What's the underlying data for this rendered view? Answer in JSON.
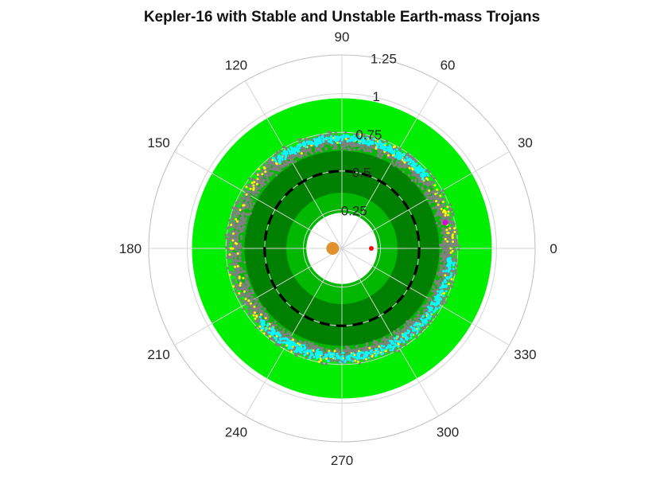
{
  "chart_data": {
    "type": "scatter",
    "projection": "polar",
    "title": "Kepler-16 with Stable and Unstable Earth-mass Trojans",
    "theta_tick_labels": [
      "0",
      "30",
      "60",
      "90",
      "120",
      "150",
      "180",
      "210",
      "240",
      "270",
      "300",
      "330"
    ],
    "theta_ticks_deg": [
      0,
      30,
      60,
      90,
      120,
      150,
      180,
      210,
      240,
      270,
      300,
      330
    ],
    "r_tick_labels": [
      "0.25",
      "0.5",
      "0.75",
      "1",
      "1.25"
    ],
    "r_ticks": [
      0.25,
      0.5,
      0.75,
      1.0,
      1.25
    ],
    "rlim": [
      0,
      1.25
    ],
    "grid": true,
    "regions": [
      {
        "kind": "annulus",
        "r_inner": 0.71,
        "r_outer": 0.97,
        "color": "#00ee00"
      },
      {
        "kind": "annulus",
        "r_inner": 0.23,
        "r_outer": 0.71,
        "color": "#00b800"
      },
      {
        "kind": "annulus",
        "r_inner": 0.36,
        "r_outer": 0.63,
        "color": "#008000"
      }
    ],
    "series": [
      {
        "kind": "scatter-band",
        "r_min": 0.63,
        "r_max": 0.76,
        "count": 2600,
        "color": "#808080",
        "marker_size": 1.7
      },
      {
        "kind": "scatter-band",
        "r_min": 0.66,
        "r_max": 0.75,
        "count": 260,
        "color": "#ffff00",
        "marker_size": 1.5
      },
      {
        "kind": "scatter-arc",
        "theta_from": 40,
        "theta_to": 128,
        "r_min": 0.68,
        "r_max": 0.74,
        "count": 360,
        "color": "#00ffff",
        "marker_size": 1.5
      },
      {
        "kind": "scatter-arc",
        "theta_from": 220,
        "theta_to": 355,
        "r_min": 0.67,
        "r_max": 0.74,
        "count": 480,
        "color": "#00ffff",
        "marker_size": 1.5
      }
    ],
    "reference_orbit": {
      "r": 0.5,
      "style": "dashed",
      "color": "#000000"
    },
    "markers": [
      {
        "name": "star A",
        "x": -0.06,
        "y": 0.0,
        "color": "#e0922f",
        "size": 8
      },
      {
        "name": "star B",
        "x": 0.19,
        "y": 0.0,
        "color": "#ee1111",
        "size": 3
      },
      {
        "name": "trojan",
        "r": 0.69,
        "theta": 14,
        "color": "#dd00dd",
        "size": 3.5
      }
    ]
  }
}
